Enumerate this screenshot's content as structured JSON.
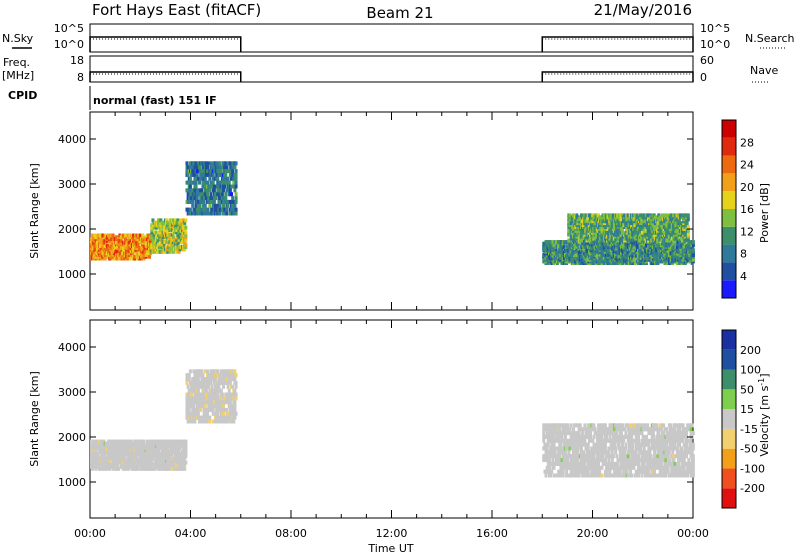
{
  "header": {
    "station": "Fort Hays East (fitACF)",
    "beam": "Beam 21",
    "date": "21/May/2016"
  },
  "params": {
    "nsky_label": "N.Sky",
    "nsearch_label": "N.Search",
    "freq_label": "Freq.",
    "freq_unit": "[MHz]",
    "nave_label": "Nave",
    "cpid_label": "CPID",
    "cpid_value": "normal (fast) 151 IF",
    "left_ticks_noise": [
      "10^5",
      "10^0"
    ],
    "right_ticks_noise": [
      "10^5",
      "10^0"
    ],
    "left_ticks_freq": [
      "18",
      "8"
    ],
    "right_ticks_nave": [
      "60",
      "0"
    ]
  },
  "colors": {
    "power_scale": [
      "#1a1aff",
      "#1f4fa0",
      "#2f7a9a",
      "#3c8f6a",
      "#7fbf3f",
      "#e6d21a",
      "#f2a01a",
      "#ee6a10",
      "#e02a10",
      "#cc0000"
    ],
    "velocity_scale": [
      "#e01010",
      "#f05020",
      "#f2a01a",
      "#f2d070",
      "#c8c8c8",
      "#7fcf4f",
      "#3c8f6a",
      "#1f4fa0",
      "#1a2fa0"
    ]
  },
  "chart_data": [
    {
      "type": "heatmap",
      "title": "",
      "xlabel": "",
      "ylabel": "Slant Range [km]",
      "ylim": [
        200,
        4600
      ],
      "xlim_hours": [
        0,
        24
      ],
      "yticks": [
        "1000",
        "2000",
        "3000",
        "4000"
      ],
      "colorbar": {
        "label": "Power [dB]",
        "ticks": [
          "4",
          "8",
          "12",
          "16",
          "20",
          "24",
          "28"
        ],
        "range": [
          0,
          32
        ]
      },
      "observation_periods_hours": [
        [
          0,
          6
        ],
        [
          18,
          24
        ]
      ],
      "echo_bands": [
        {
          "t0": 0.0,
          "t1": 2.4,
          "r0": 1300,
          "r1": 1850,
          "power_dB": 22
        },
        {
          "t0": 2.4,
          "t1": 3.8,
          "r0": 1450,
          "r1": 2200,
          "power_dB": 16
        },
        {
          "t0": 3.8,
          "t1": 5.8,
          "r0": 2300,
          "r1": 3500,
          "power_dB": 8
        },
        {
          "t0": 18.0,
          "t1": 24.0,
          "r0": 1200,
          "r1": 1700,
          "power_dB": 10
        },
        {
          "t0": 19.0,
          "t1": 23.8,
          "r0": 1700,
          "r1": 2300,
          "power_dB": 12
        }
      ]
    },
    {
      "type": "heatmap",
      "title": "",
      "xlabel": "Time UT",
      "ylabel": "Slant Range [km]",
      "ylim": [
        200,
        4600
      ],
      "xlim_hours": [
        0,
        24
      ],
      "yticks": [
        "1000",
        "2000",
        "3000",
        "4000"
      ],
      "xticks": [
        "00:00",
        "04:00",
        "08:00",
        "12:00",
        "16:00",
        "20:00",
        "00:00"
      ],
      "colorbar": {
        "label": "Velocity [m s^-1]",
        "ticks": [
          "200",
          "100",
          "50",
          "15",
          "-15",
          "-50",
          "-100",
          "-200"
        ],
        "range": [
          -250,
          250
        ]
      },
      "echo_bands": [
        {
          "t0": 0.0,
          "t1": 3.8,
          "r0": 1250,
          "r1": 1900,
          "velocity": 0
        },
        {
          "t0": 3.8,
          "t1": 5.8,
          "r0": 2300,
          "r1": 3500,
          "velocity": -20
        },
        {
          "t0": 18.0,
          "t1": 24.0,
          "r0": 1100,
          "r1": 2300,
          "velocity": 0
        }
      ]
    }
  ]
}
